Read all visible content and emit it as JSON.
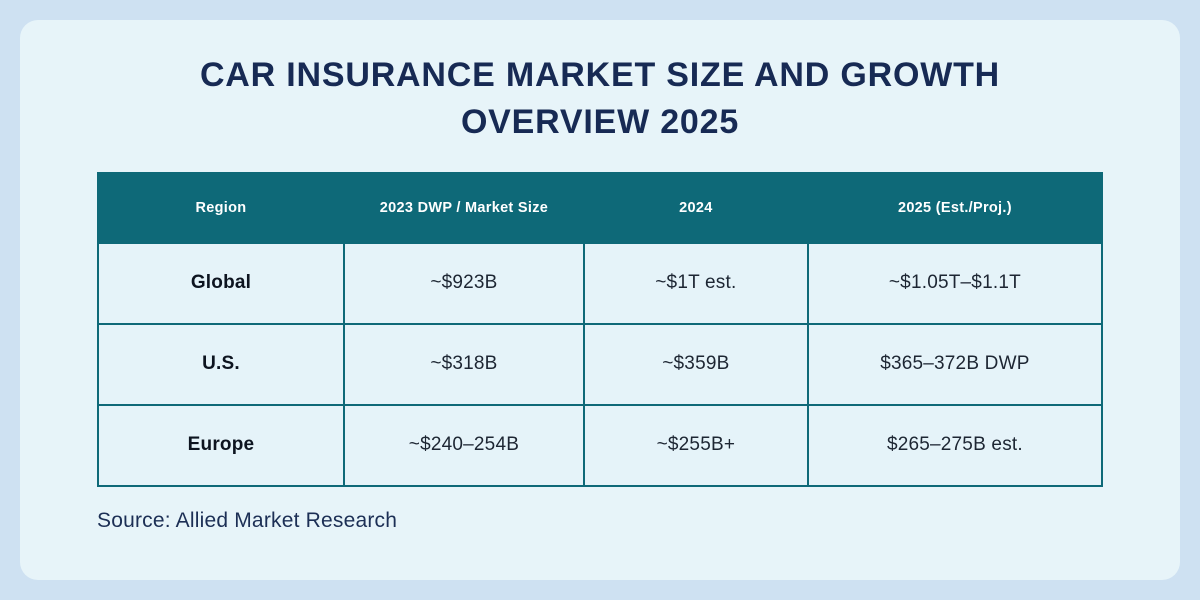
{
  "title": "CAR INSURANCE MARKET SIZE AND GROWTH OVERVIEW 2025",
  "source": "Source: Allied Market Research",
  "colors": {
    "page_background": "#cee1f2",
    "card_background": "#e7f4f9",
    "header_teal": "#0e6978",
    "border_teal": "#0e6978",
    "title_navy": "#172a54",
    "header_text": "#ffffff",
    "cell_text": "#1d2633",
    "region_text": "#0d1420",
    "source_text": "#1c2f55"
  },
  "chart_data": {
    "type": "table",
    "title": "Car Insurance Market Size and Growth Overview 2025",
    "columns": [
      "Region",
      "2023 DWP / Market Size",
      "2024",
      "2025 (Est./Proj.)"
    ],
    "rows": [
      [
        "Global",
        "~$923B",
        "~$1T est.",
        "~$1.05T–$1.1T"
      ],
      [
        "U.S.",
        "~$318B",
        "~$359B",
        "$365–372B DWP"
      ],
      [
        "Europe",
        "~$240–254B",
        "~$255B+",
        "$265–275B est."
      ]
    ],
    "source": "Allied Market Research"
  }
}
